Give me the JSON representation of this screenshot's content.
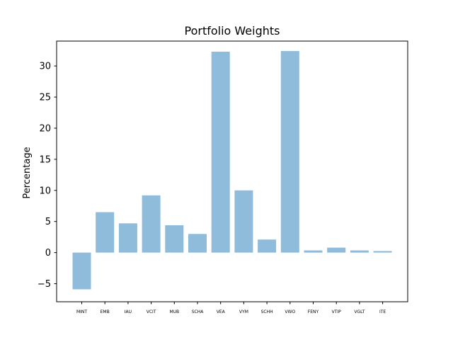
{
  "chart_data": {
    "type": "bar",
    "title": "Portfolio Weights",
    "xlabel": "",
    "ylabel": "Percentage",
    "categories": [
      "MINT",
      "EMB",
      "IAU",
      "VCIT",
      "MUB",
      "SCHA",
      "VEA",
      "VYM",
      "SCHH",
      "VWO",
      "FENY",
      "VTIP",
      "VGLT",
      "ITE"
    ],
    "values": [
      -5.9,
      6.5,
      4.7,
      9.2,
      4.4,
      3.0,
      32.3,
      10.0,
      2.1,
      32.4,
      0.35,
      0.8,
      0.35,
      0.25
    ],
    "yticks": [
      -5,
      0,
      5,
      10,
      15,
      20,
      25,
      30
    ],
    "ylim": [
      -7.9,
      34.0
    ],
    "grid": false,
    "bar_color": "#8fbcdb",
    "axis_color": "#000000"
  }
}
